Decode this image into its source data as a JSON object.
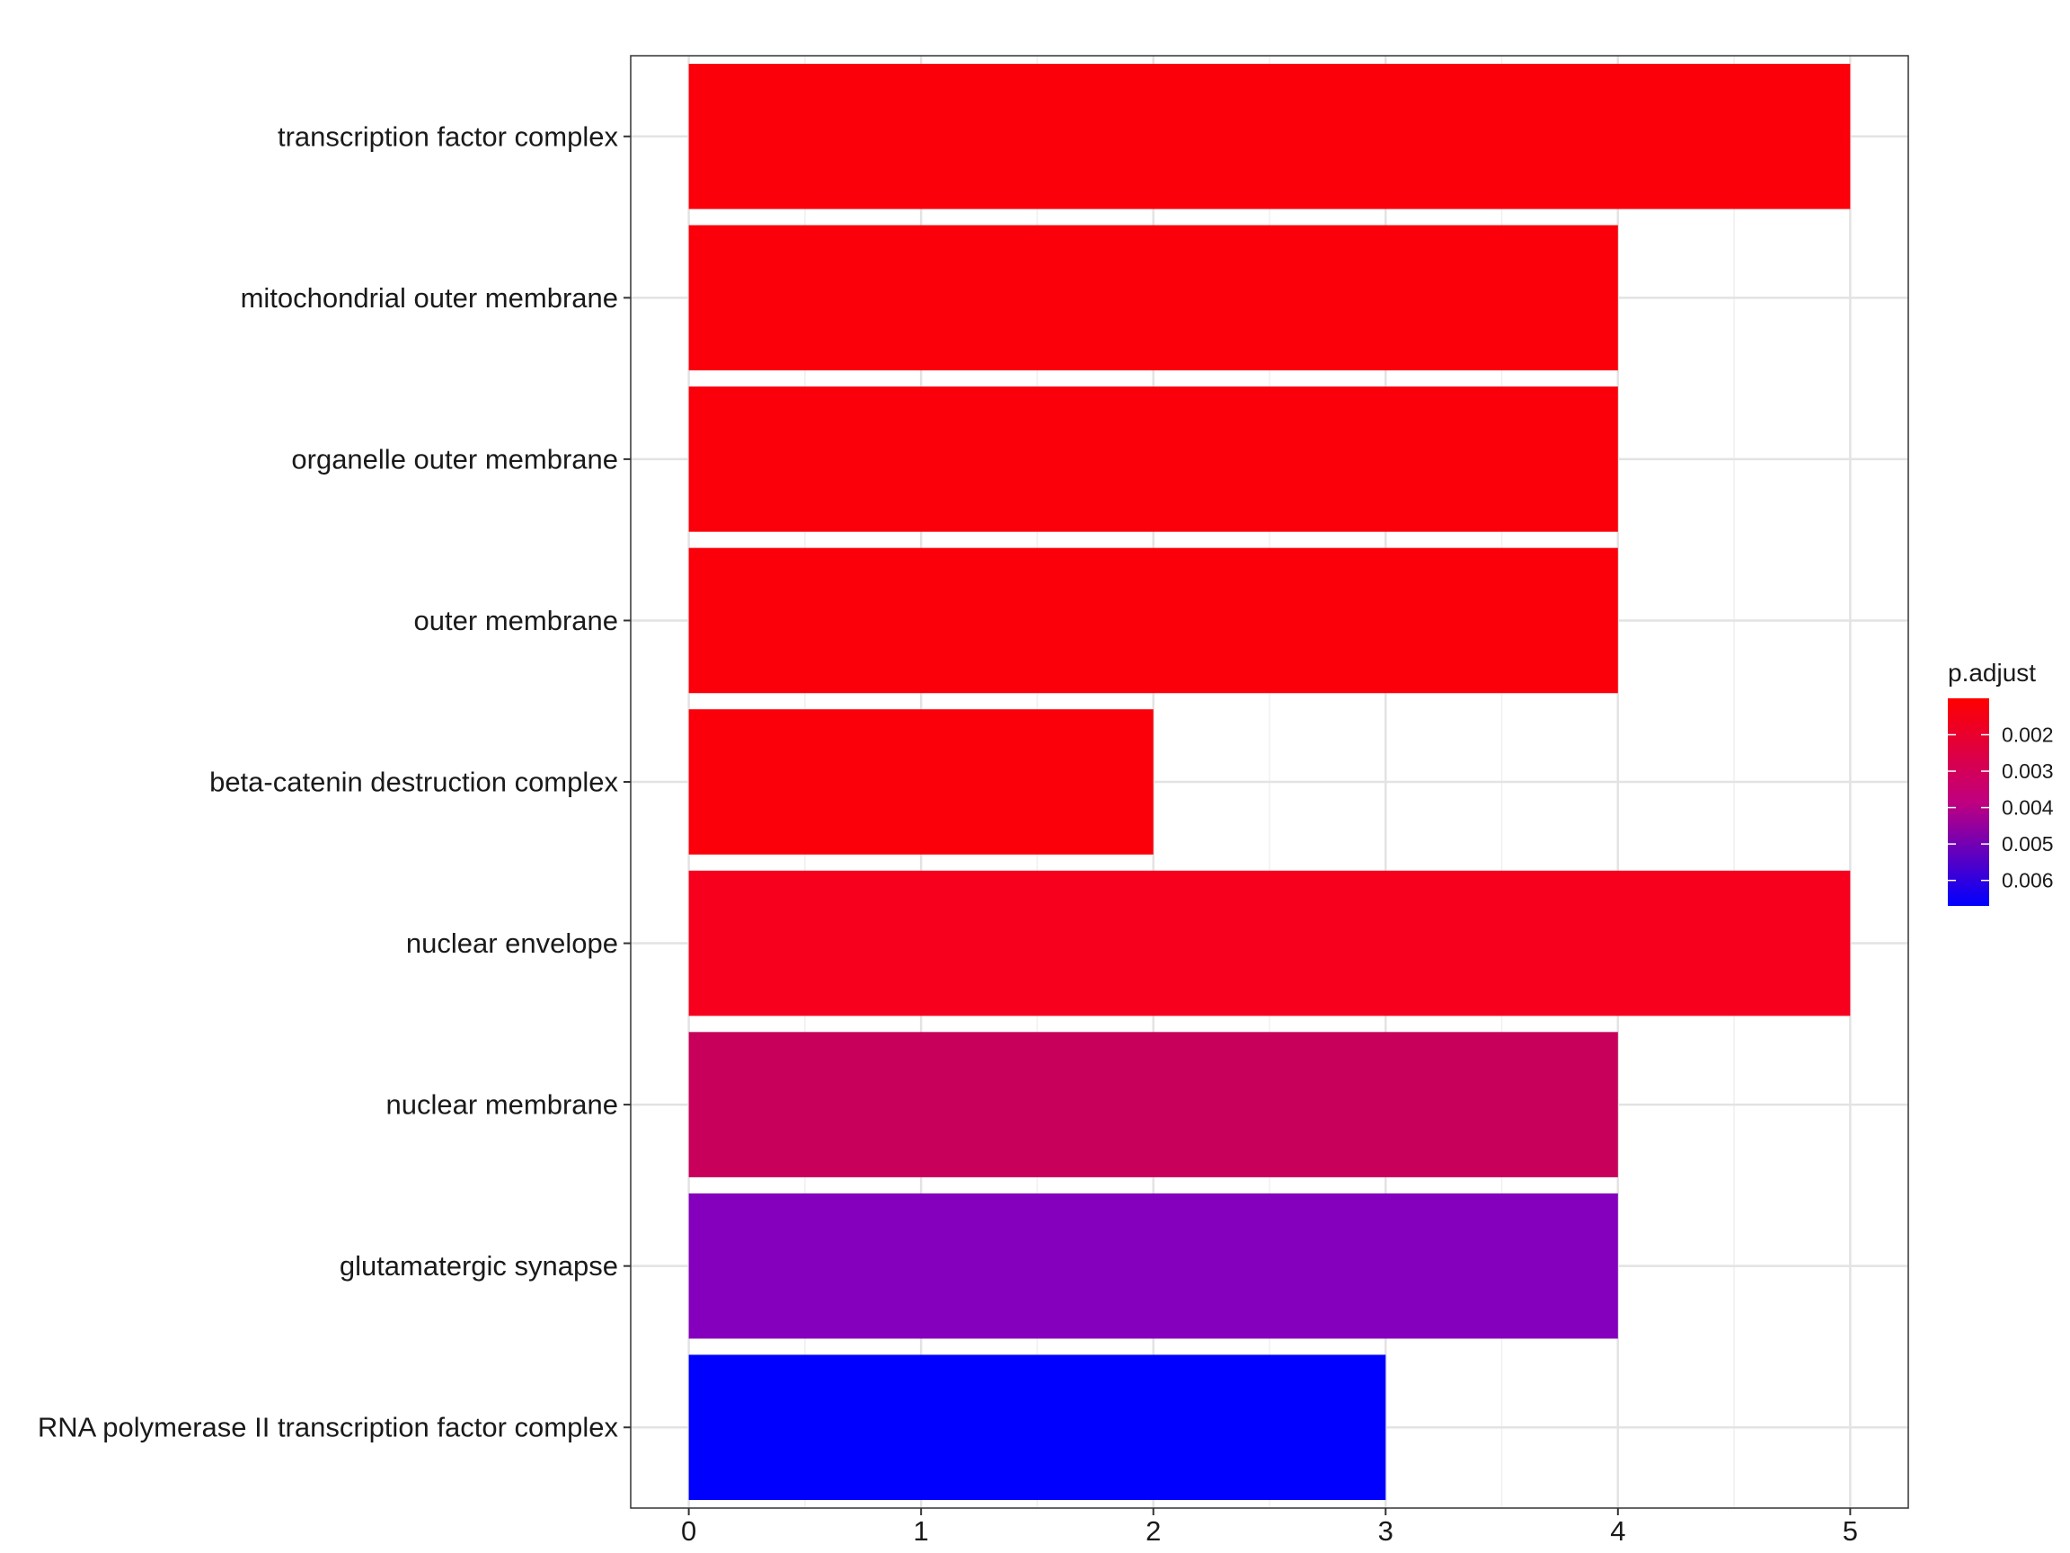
{
  "chart_data": {
    "type": "bar",
    "orientation": "horizontal",
    "categories": [
      "transcription factor complex",
      "mitochondrial outer membrane",
      "organelle outer membrane",
      "outer membrane",
      "beta-catenin destruction complex",
      "nuclear envelope",
      "nuclear membrane",
      "glutamatergic synapse",
      "RNA polymerase II transcription factor complex"
    ],
    "values": [
      5,
      4,
      4,
      4,
      2,
      5,
      4,
      4,
      3
    ],
    "p_adjust": [
      0.0012,
      0.0012,
      0.0012,
      0.0012,
      0.0012,
      0.0016,
      0.0035,
      0.0049,
      0.0066
    ],
    "bar_colors": [
      "#FB000A",
      "#FB000A",
      "#FB000A",
      "#FB000A",
      "#FB000A",
      "#F7001E",
      "#C8005B",
      "#8400BC",
      "#0000FF"
    ],
    "xlim": [
      -0.25,
      5.25
    ],
    "x_ticks": [
      "0",
      "1",
      "2",
      "3",
      "4",
      "5"
    ],
    "xlabel": "",
    "ylabel": "",
    "title": "",
    "grid": true,
    "legend": {
      "title": "p.adjust",
      "placement": "right",
      "range": [
        0.001,
        0.0067
      ],
      "ticks": [
        0.002,
        0.003,
        0.004,
        0.005,
        0.006
      ],
      "tick_labels": [
        "0.002",
        "0.003",
        "0.004",
        "0.005",
        "0.006"
      ],
      "high_color": "#FF0000",
      "low_color": "#0000FF"
    }
  }
}
